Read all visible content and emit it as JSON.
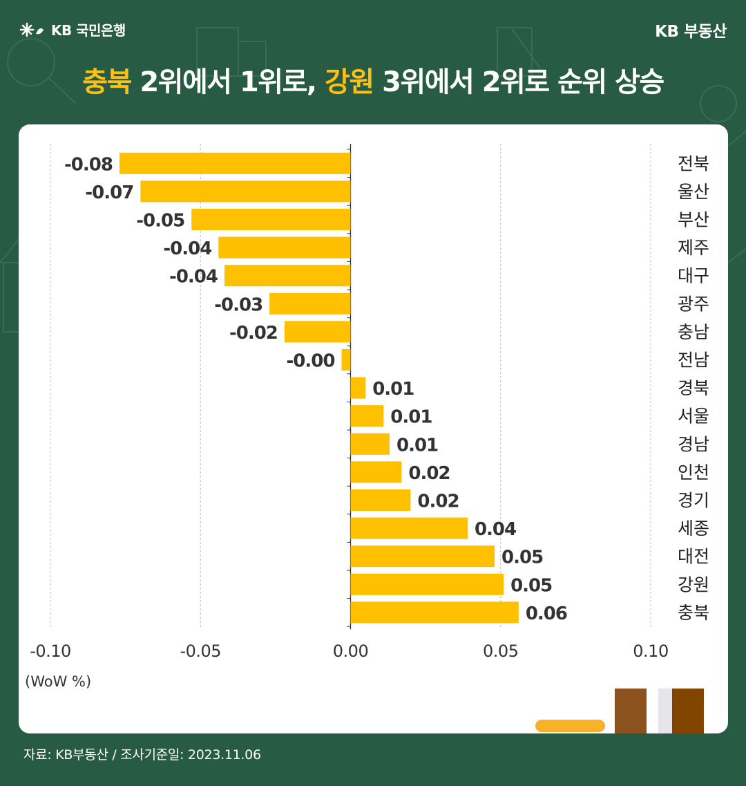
{
  "header": {
    "bank_name": "KB 국민은행",
    "brand": "KB 부동산",
    "title_parts": [
      "충북",
      " 2위에서 1위로, ",
      "강원",
      " 3위에서 2위로 순위 상승"
    ]
  },
  "colors": {
    "background": "#275b43",
    "highlight": "#fbbf16",
    "bar": "#fec000",
    "card": "#ffffff"
  },
  "chart_data": {
    "type": "bar",
    "orientation": "horizontal",
    "categories": [
      "전북",
      "울산",
      "부산",
      "제주",
      "대구",
      "광주",
      "충남",
      "전남",
      "경북",
      "서울",
      "경남",
      "인천",
      "경기",
      "세종",
      "대전",
      "강원",
      "충북"
    ],
    "values": [
      -0.077,
      -0.07,
      -0.053,
      -0.044,
      -0.042,
      -0.027,
      -0.022,
      -0.003,
      0.005,
      0.011,
      0.013,
      0.017,
      0.02,
      0.039,
      0.048,
      0.051,
      0.056
    ],
    "data_labels": [
      "-0.08",
      "-0.07",
      "-0.05",
      "-0.04",
      "-0.04",
      "-0.03",
      "-0.02",
      "-0.00",
      "0.01",
      "0.01",
      "0.01",
      "0.02",
      "0.02",
      "0.04",
      "0.05",
      "0.05",
      "0.06"
    ],
    "xlim": [
      -0.1,
      0.1
    ],
    "xticks": [
      -0.1,
      -0.05,
      0,
      0.05,
      0.1
    ],
    "xtick_labels": [
      "-0.10",
      "-0.05",
      "0.00",
      "0.05",
      "0.10"
    ],
    "xlabel": "(WoW %)",
    "grid": true,
    "legend": "none"
  },
  "footer": {
    "source": "자료: KB부동산 / 조사기준일: 2023.11.06"
  }
}
